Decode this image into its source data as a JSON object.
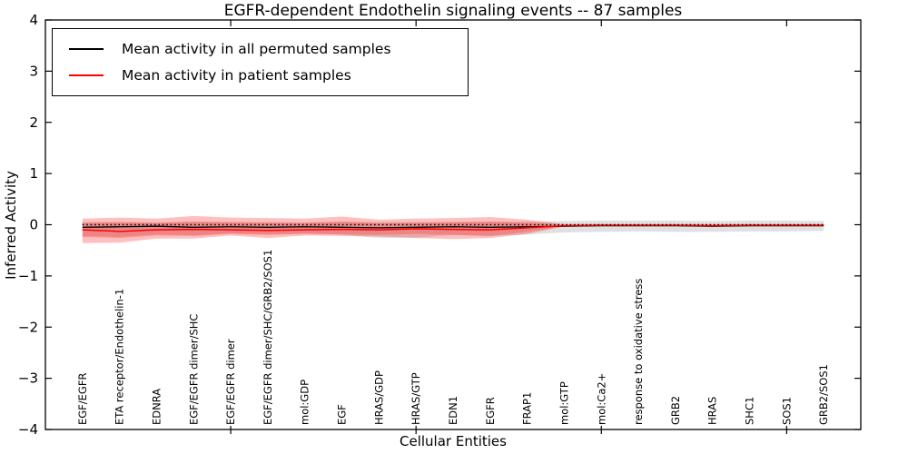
{
  "title": "EGFR-dependent Endothelin signaling events -- 87 samples",
  "axes": {
    "ylabel": "Inferred Activity",
    "xlabel": "Cellular Entities"
  },
  "legend": {
    "items": [
      {
        "label": "Mean activity in all permuted samples",
        "color": "#000000"
      },
      {
        "label": "Mean activity in patient samples",
        "color": "#ff0000"
      }
    ]
  },
  "chart_data": {
    "type": "line",
    "title": "EGFR-dependent Endothelin signaling events -- 87 samples",
    "xlabel": "Cellular Entities",
    "ylabel": "Inferred Activity",
    "ylim": [
      -4,
      4
    ],
    "xlim": [
      0,
      22
    ],
    "yticks": [
      -4,
      -3,
      -2,
      -1,
      0,
      1,
      2,
      3,
      4
    ],
    "xticks": [
      5,
      10,
      15,
      20
    ],
    "grid": false,
    "legend_position": "upper left",
    "x": [
      1,
      2,
      3,
      4,
      5,
      6,
      7,
      8,
      9,
      10,
      11,
      12,
      13,
      14,
      15,
      16,
      17,
      18,
      19,
      20,
      21
    ],
    "categories": [
      "EGF/EGFR",
      "ETA receptor/Endothelin-1",
      "EDNRA",
      "EGF/EGFR dimer/SHC",
      "EGF/EGFR dimer",
      "EGF/EGFR dimer/SHC/GRB2/SOS1",
      "mol:GDP",
      "EGF",
      "HRAS/GDP",
      "HRAS/GTP",
      "EDN1",
      "EGFR",
      "FRAP1",
      "mol:GTP",
      "mol:Ca2+",
      "response to oxidative stress",
      "GRB2",
      "HRAS",
      "SHC1",
      "SOS1",
      "GRB2/SOS1"
    ],
    "series": [
      {
        "name": "Mean activity in all permuted samples",
        "color": "#000000",
        "style": "solid",
        "width": 1.3,
        "values": [
          -0.05,
          -0.04,
          -0.03,
          -0.05,
          -0.04,
          -0.05,
          -0.04,
          -0.05,
          -0.06,
          -0.05,
          -0.04,
          -0.05,
          -0.04,
          -0.03,
          -0.02,
          -0.02,
          -0.02,
          -0.03,
          -0.02,
          -0.02,
          -0.02
        ]
      },
      {
        "name": "Mean activity in patient samples",
        "color": "#ff0000",
        "style": "solid",
        "width": 1.5,
        "values": [
          -0.1,
          -0.13,
          -0.1,
          -0.09,
          -0.1,
          -0.11,
          -0.1,
          -0.09,
          -0.1,
          -0.08,
          -0.09,
          -0.1,
          -0.06,
          -0.02,
          -0.01,
          -0.01,
          -0.01,
          -0.02,
          -0.01,
          -0.01,
          -0.01
        ]
      },
      {
        "name": "zero reference",
        "color": "#000000",
        "style": "dotted",
        "width": 1.4,
        "values": [
          0,
          0,
          0,
          0,
          0,
          0,
          0,
          0,
          0,
          0,
          0,
          0,
          0,
          0,
          0,
          0,
          0,
          0,
          0,
          0,
          0
        ]
      }
    ],
    "bands": [
      {
        "name": "permuted samples std band",
        "color": "#000000",
        "opacity": 0.12,
        "upper": [
          0.05,
          0.05,
          0.04,
          0.06,
          0.05,
          0.05,
          0.04,
          0.06,
          0.05,
          0.05,
          0.05,
          0.06,
          0.06,
          0.07,
          0.08,
          0.08,
          0.08,
          0.07,
          0.08,
          0.08,
          0.07
        ],
        "lower": [
          -0.22,
          -0.24,
          -0.19,
          -0.21,
          -0.17,
          -0.19,
          -0.17,
          -0.19,
          -0.26,
          -0.25,
          -0.2,
          -0.22,
          -0.19,
          -0.15,
          -0.14,
          -0.13,
          -0.14,
          -0.14,
          -0.13,
          -0.13,
          -0.12
        ]
      },
      {
        "name": "patient samples std band outer",
        "color": "#ff0000",
        "opacity": 0.25,
        "upper": [
          0.12,
          0.14,
          0.12,
          0.17,
          0.14,
          0.13,
          0.12,
          0.16,
          0.1,
          0.12,
          0.13,
          0.15,
          0.1,
          0.01,
          0.01,
          0.01,
          0.01,
          0.01,
          0.01,
          0.01,
          0.01
        ],
        "lower": [
          -0.36,
          -0.35,
          -0.27,
          -0.27,
          -0.21,
          -0.26,
          -0.21,
          -0.22,
          -0.23,
          -0.26,
          -0.28,
          -0.26,
          -0.18,
          -0.03,
          -0.03,
          -0.03,
          -0.03,
          -0.03,
          -0.03,
          -0.03,
          -0.03
        ]
      },
      {
        "name": "patient samples std band inner",
        "color": "#ff0000",
        "opacity": 0.2,
        "upper": [
          0.04,
          0.05,
          0.04,
          0.06,
          0.05,
          0.04,
          0.04,
          0.06,
          0.03,
          0.04,
          0.05,
          0.06,
          0.04,
          0.0,
          0.0,
          0.0,
          0.0,
          0.0,
          0.0,
          0.0,
          0.0
        ],
        "lower": [
          -0.24,
          -0.26,
          -0.21,
          -0.22,
          -0.18,
          -0.2,
          -0.18,
          -0.19,
          -0.2,
          -0.18,
          -0.2,
          -0.22,
          -0.14,
          -0.03,
          -0.02,
          -0.02,
          -0.02,
          -0.02,
          -0.02,
          -0.02,
          -0.02
        ]
      }
    ]
  }
}
